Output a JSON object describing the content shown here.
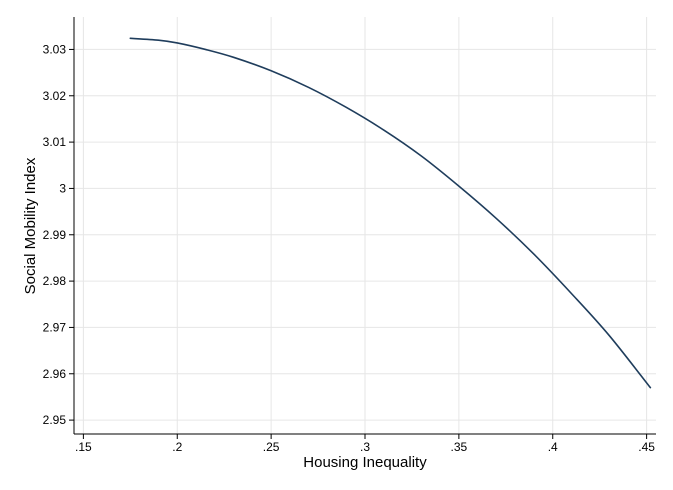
{
  "chart_data": {
    "type": "line",
    "xlabel": "Housing Inequality",
    "ylabel": "Social Mobility Index",
    "xlim": [
      0.145,
      0.455
    ],
    "ylim": [
      2.947,
      3.037
    ],
    "x_ticks": [
      {
        "value": 0.15,
        "label": ".15"
      },
      {
        "value": 0.2,
        "label": ".2"
      },
      {
        "value": 0.25,
        "label": ".25"
      },
      {
        "value": 0.3,
        "label": ".3"
      },
      {
        "value": 0.35,
        "label": ".35"
      },
      {
        "value": 0.4,
        "label": ".4"
      },
      {
        "value": 0.45,
        "label": ".45"
      }
    ],
    "y_ticks": [
      {
        "value": 2.95,
        "label": "2.95"
      },
      {
        "value": 2.96,
        "label": "2.96"
      },
      {
        "value": 2.97,
        "label": "2.97"
      },
      {
        "value": 2.98,
        "label": "2.98"
      },
      {
        "value": 2.99,
        "label": "2.99"
      },
      {
        "value": 3.0,
        "label": "3"
      },
      {
        "value": 3.01,
        "label": "3.01"
      },
      {
        "value": 3.02,
        "label": "3.02"
      },
      {
        "value": 3.03,
        "label": "3.03"
      }
    ],
    "grid": true,
    "legend": "none",
    "series": [
      {
        "color": "#1f3d5c",
        "x": [
          0.175,
          0.19,
          0.2,
          0.215,
          0.23,
          0.25,
          0.27,
          0.29,
          0.31,
          0.33,
          0.35,
          0.37,
          0.39,
          0.41,
          0.43,
          0.452
        ],
        "y": [
          3.0324,
          3.032,
          3.0314,
          3.03,
          3.0283,
          3.0254,
          3.0218,
          3.0175,
          3.0126,
          3.007,
          3.0005,
          2.9935,
          2.9858,
          2.9773,
          2.9683,
          2.957
        ]
      }
    ]
  }
}
